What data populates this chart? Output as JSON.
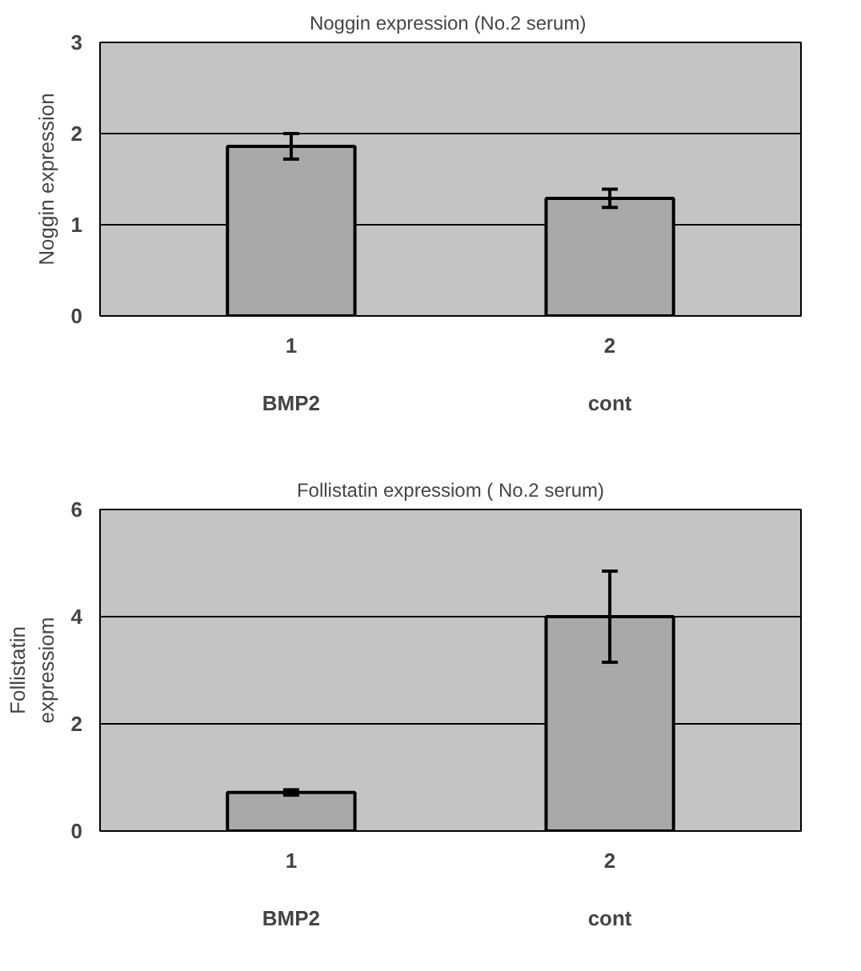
{
  "chart_data": [
    {
      "type": "bar",
      "title": "Noggin expression  (No.2 serum)",
      "ylabel": "Noggin expression",
      "categories": [
        "1\n\nBMP2",
        "2\n\ncont"
      ],
      "values": [
        1.86,
        1.29
      ],
      "errors": [
        0.14,
        0.1
      ],
      "color": "#a9a9a9",
      "ylim": [
        0,
        3
      ],
      "yticks": [
        0,
        1,
        2,
        3
      ],
      "grid": "y"
    },
    {
      "type": "bar",
      "title": "Follistatin expressiom ( No.2 serum)",
      "ylabel": "Follistatin\nexpressiom",
      "categories": [
        "1\n\nBMP2",
        "2\n\ncont"
      ],
      "values": [
        0.72,
        4.0
      ],
      "errors": [
        0.05,
        0.85
      ],
      "color": "#a9a9a9",
      "ylim": [
        0,
        6
      ],
      "yticks": [
        0,
        2,
        4,
        6
      ],
      "grid": "y"
    }
  ]
}
